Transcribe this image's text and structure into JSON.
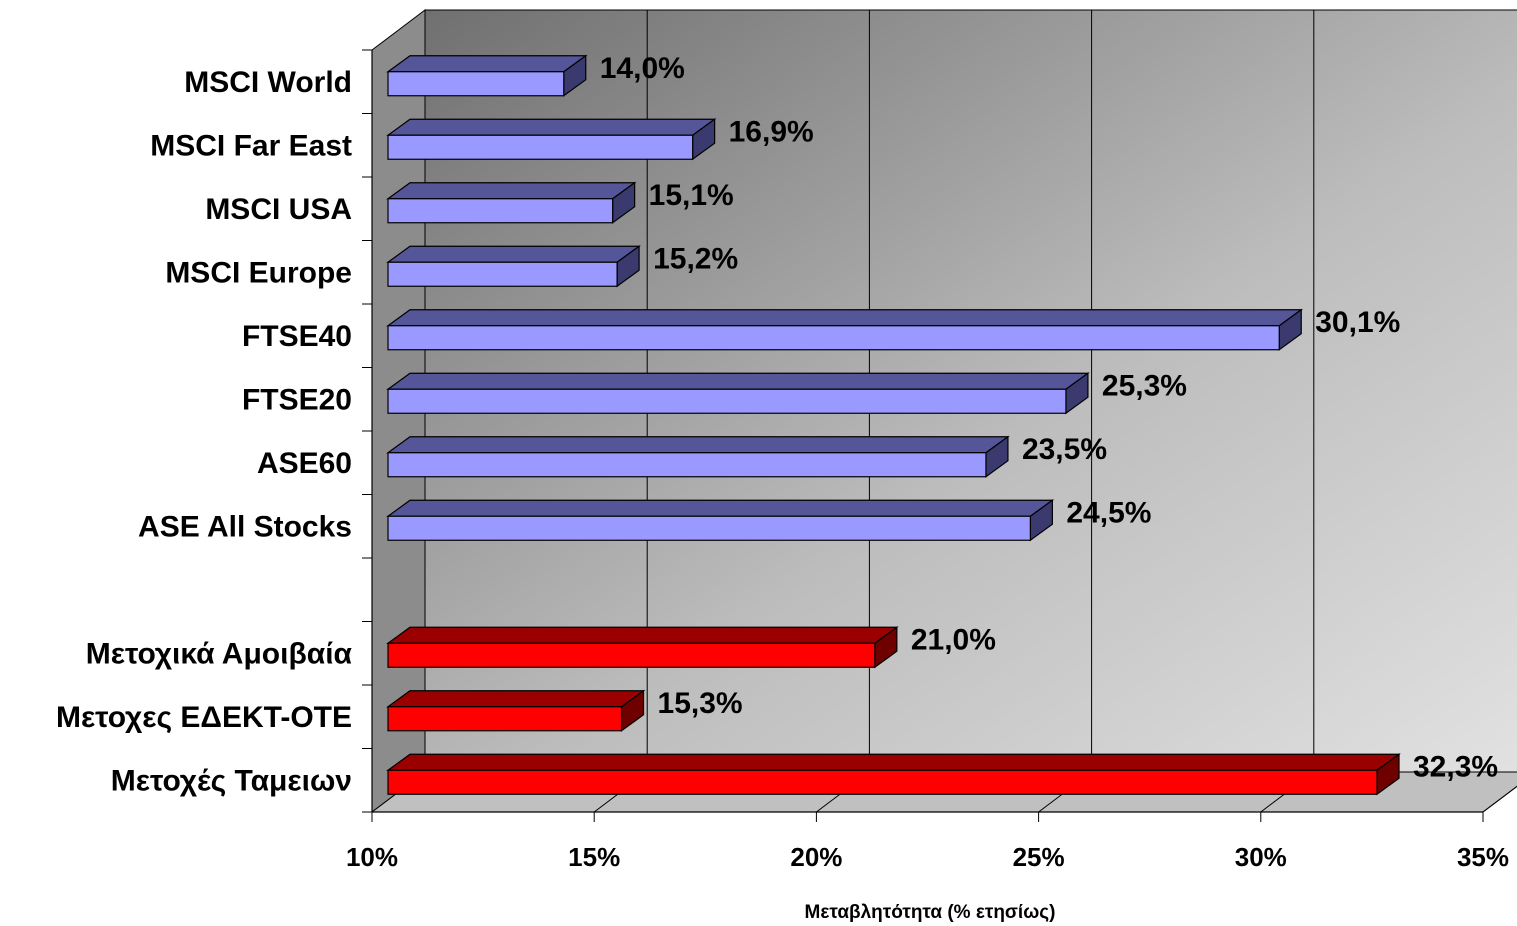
{
  "chart_data": {
    "type": "bar",
    "orientation": "horizontal",
    "three_d": true,
    "xlabel": "Μεταβλητότητα (% ετησίως)",
    "ylabel": "",
    "xlim": [
      10,
      35
    ],
    "x_ticks": [
      "10%",
      "15%",
      "20%",
      "25%",
      "30%",
      "35%"
    ],
    "grid": true,
    "categories": [
      "MSCI World",
      "MSCI Far East",
      "MSCI USA",
      "MSCI Europe",
      "FTSE40",
      "FTSE20",
      "ASE60",
      "ASE All Stocks",
      "",
      "Μετοχικά Αμοιβαία",
      "Μετοχες ΕΔΕΚΤ-ΟΤΕ",
      "Μετοχές Ταμειων"
    ],
    "values": [
      14.0,
      16.9,
      15.1,
      15.2,
      30.1,
      25.3,
      23.5,
      24.5,
      null,
      21.0,
      15.3,
      32.3
    ],
    "value_labels": [
      "14,0%",
      "16,9%",
      "15,1%",
      "15,2%",
      "30,1%",
      "25,3%",
      "23,5%",
      "24,5%",
      "",
      "21,0%",
      "15,3%",
      "32,3%"
    ],
    "bar_colors": [
      "blue",
      "blue",
      "blue",
      "blue",
      "blue",
      "blue",
      "blue",
      "blue",
      "",
      "red",
      "red",
      "red"
    ]
  },
  "colors": {
    "blue_front": "#9999ff",
    "blue_top": "#55559a",
    "blue_side": "#3a3a6e",
    "red_front": "#ff0000",
    "red_top": "#9a0000",
    "red_side": "#6e0000",
    "wall_dark": "#777777",
    "wall_light": "#cfcfcf",
    "side_wall": "#8c8c8c",
    "floor": "#c0c0c0"
  }
}
